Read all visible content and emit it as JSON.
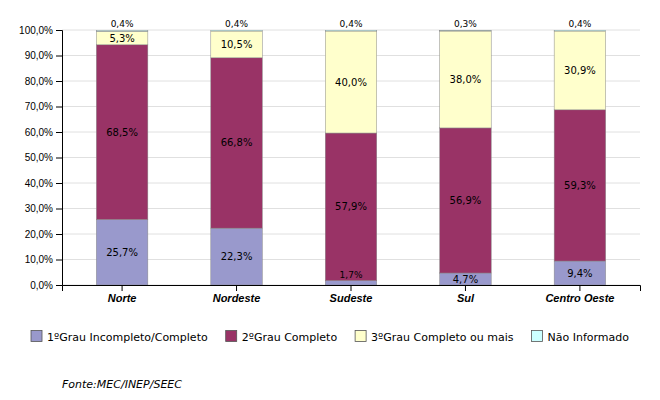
{
  "chart_data": {
    "type": "bar",
    "stacked": true,
    "data_labels": true,
    "grid": true,
    "legend": "bottom",
    "categories": [
      "Norte",
      "Nordeste",
      "Sudeste",
      "Sul",
      "Centro Oeste"
    ],
    "series": [
      {
        "name": "1ºGrau Incompleto/Completo",
        "color": "#9999CC",
        "values": [
          25.7,
          22.3,
          1.7,
          4.7,
          9.4
        ],
        "value_labels": [
          "25,7%",
          "22,3%",
          "1,7%",
          "4,7%",
          "9,4%"
        ]
      },
      {
        "name": "2ºGrau Completo",
        "color": "#993366",
        "values": [
          68.5,
          66.8,
          57.9,
          56.9,
          59.3
        ],
        "value_labels": [
          "68,5%",
          "66,8%",
          "57,9%",
          "56,9%",
          "59,3%"
        ]
      },
      {
        "name": "3ºGrau Completo ou mais",
        "color": "#FFFFCC",
        "values": [
          5.3,
          10.5,
          40.0,
          38.0,
          30.9
        ],
        "value_labels": [
          "5,3%",
          "10,5%",
          "40,0%",
          "38,0%",
          "30,9%"
        ]
      },
      {
        "name": "Não Informado",
        "color": "#CCFFFF",
        "values": [
          0.4,
          0.4,
          0.4,
          0.3,
          0.4
        ],
        "value_labels": [
          "0,4%",
          "0,4%",
          "0,4%",
          "0,3%",
          "0,4%"
        ]
      }
    ],
    "ylim": [
      0,
      100
    ],
    "yticks": [
      {
        "value": 0,
        "label": "0,0%"
      },
      {
        "value": 10,
        "label": "10,0%"
      },
      {
        "value": 20,
        "label": "20,0%"
      },
      {
        "value": 30,
        "label": "30,0%"
      },
      {
        "value": 40,
        "label": "40,0%"
      },
      {
        "value": 50,
        "label": "50,0%"
      },
      {
        "value": 60,
        "label": "60,0%"
      },
      {
        "value": 70,
        "label": "70,0%"
      },
      {
        "value": 80,
        "label": "80,0%"
      },
      {
        "value": 90,
        "label": "90,0%"
      },
      {
        "value": 100,
        "label": "100,0%"
      }
    ],
    "annotations": [
      "Fonte:MEC/INEP/SEEC"
    ]
  }
}
